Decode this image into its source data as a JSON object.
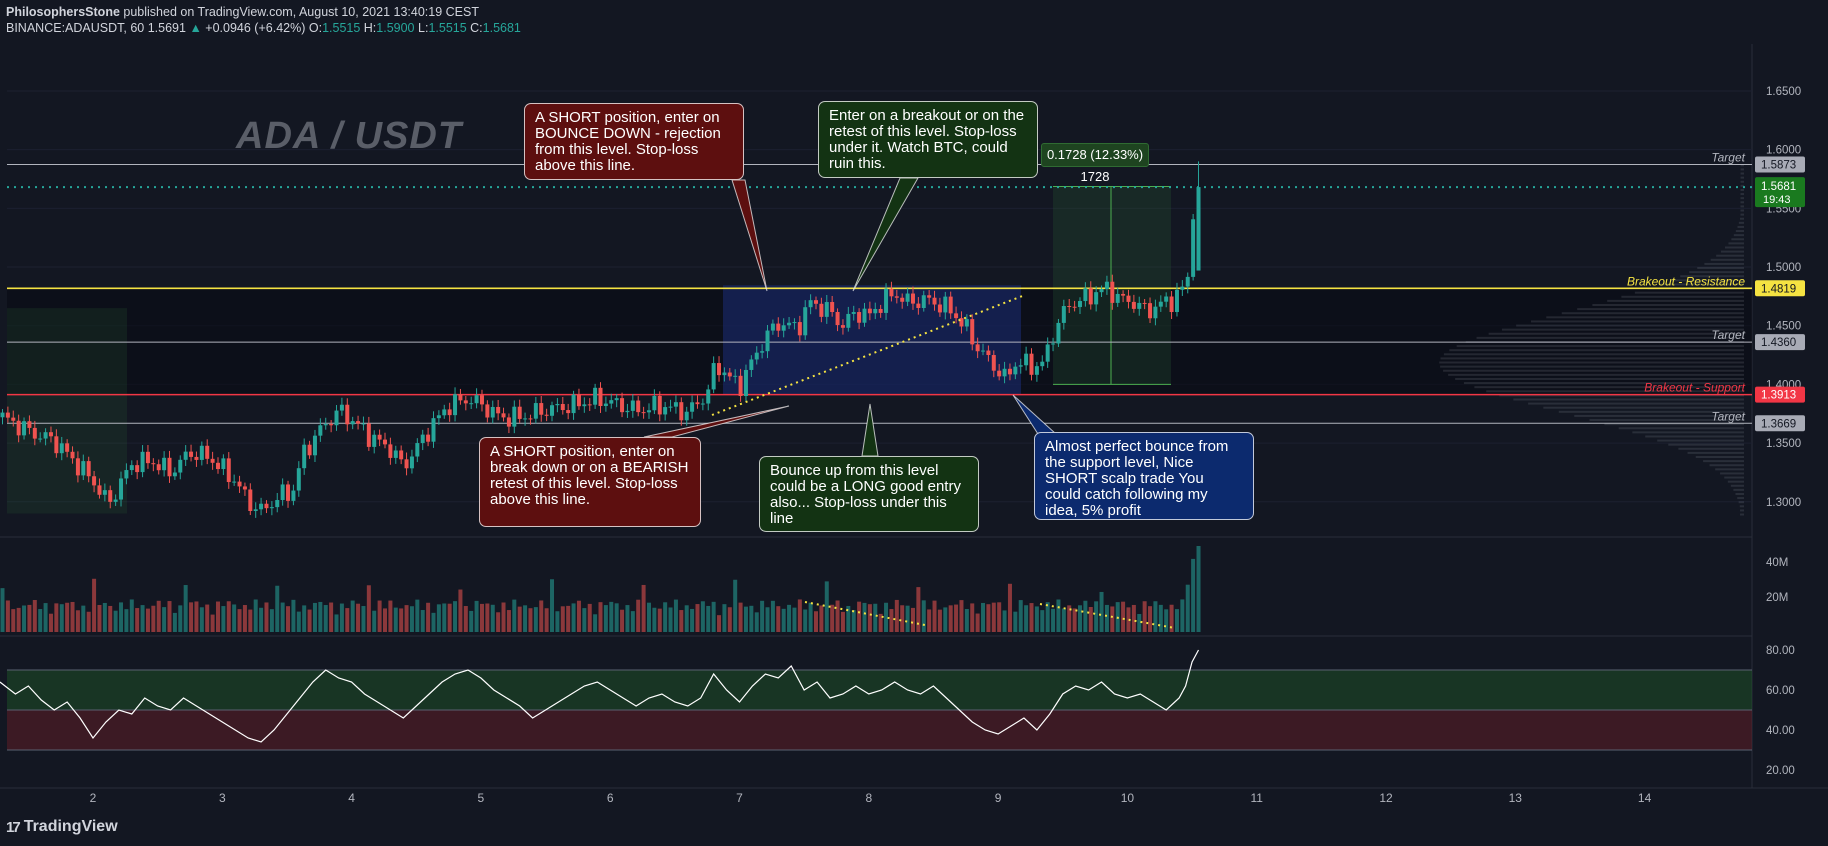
{
  "header": {
    "author": "PhilosophersStone",
    "published": "published on TradingView.com, August 10, 2021 13:40:19 CEST",
    "symbol": "BINANCE:ADAUSDT, 60",
    "last": "1.5691",
    "change": "+0.0946 (+6.42%)",
    "o_label": "O:",
    "o_value": "1.5515",
    "h_label": "H:",
    "h_value": "1.5900",
    "l_label": "L:",
    "l_value": "1.5515",
    "c_label": "C:",
    "c_value": "1.5681"
  },
  "watermark": "ADA / USDT",
  "measure_label": "0.1728 (12.33%) 1728",
  "callouts": {
    "short_top": "A SHORT position, enter on BOUNCE DOWN - rejection from this level. Stop-loss above this line.",
    "breakout": "Enter on a breakout or on the retest of this level. Stop-loss under it. Watch BTC, could ruin this.",
    "short_bottom": "A SHORT position, enter on break down or on a BEARISH retest of this level. Stop-loss above this line.",
    "long": "Bounce up from this level could be a LONG good entry also... Stop-loss under this line",
    "bounce": "Almost perfect bounce from the support level, Nice SHORT scalp trade You could catch following my idea, 5% profit"
  },
  "current_price_tag": {
    "price": "1.5681",
    "countdown": "19:43"
  },
  "colors": {
    "background": "#131722",
    "up": "#26a69a",
    "down": "#ef5350",
    "resistance": "#f5e342",
    "support": "#f23645",
    "target": "#b2b5be",
    "rsi_line": "#ffffff"
  },
  "logo_icon": "tradingview-logo-icon",
  "logo": "TradingView",
  "chart_data": [
    {
      "type": "candlestick",
      "price_axis_ticks": [
        "1.6500",
        "1.6000",
        "1.5500",
        "1.5000",
        "1.4500",
        "1.4000",
        "1.3500",
        "1.3000"
      ],
      "x_ticks": [
        "2",
        "3",
        "4",
        "5",
        "6",
        "7",
        "8",
        "9",
        "10",
        "11",
        "12",
        "13",
        "14"
      ],
      "ylim": [
        1.27,
        1.69
      ],
      "levels": [
        {
          "name": "target",
          "value": 1.5873,
          "tag": "1.5873",
          "label": "Target",
          "color": "#b2b5be"
        },
        {
          "name": "resistance",
          "value": 1.4819,
          "tag": "1.4819",
          "label": "Brakeout - Resistance",
          "color": "#f5e342"
        },
        {
          "name": "target",
          "value": 1.436,
          "tag": "1.4360",
          "label": "Target",
          "color": "#b2b5be"
        },
        {
          "name": "support",
          "value": 1.3913,
          "tag": "1.3913",
          "label": "Brakeout - Support",
          "color": "#f23645"
        },
        {
          "name": "target",
          "value": 1.3669,
          "tag": "1.3669",
          "label": "Target",
          "color": "#b2b5be"
        }
      ],
      "current_price": 1.5681,
      "price_path": [
        [
          1.3,
          1.372
        ],
        [
          1.55,
          1.358
        ],
        [
          1.7,
          1.352
        ],
        [
          1.85,
          1.335
        ],
        [
          2.0,
          1.318
        ],
        [
          2.12,
          1.298
        ],
        [
          2.3,
          1.332
        ],
        [
          2.45,
          1.335
        ],
        [
          2.6,
          1.325
        ],
        [
          2.75,
          1.342
        ],
        [
          2.9,
          1.338
        ],
        [
          3.0,
          1.328
        ],
        [
          3.1,
          1.318
        ],
        [
          3.2,
          1.3
        ],
        [
          3.3,
          1.292
        ],
        [
          3.45,
          1.305
        ],
        [
          3.55,
          1.31
        ],
        [
          3.62,
          1.34
        ],
        [
          3.75,
          1.36
        ],
        [
          3.9,
          1.378
        ],
        [
          4.0,
          1.37
        ],
        [
          4.15,
          1.355
        ],
        [
          4.3,
          1.345
        ],
        [
          4.4,
          1.33
        ],
        [
          4.5,
          1.345
        ],
        [
          4.6,
          1.362
        ],
        [
          4.75,
          1.382
        ],
        [
          4.9,
          1.388
        ],
        [
          5.0,
          1.383
        ],
        [
          5.15,
          1.372
        ],
        [
          5.3,
          1.372
        ],
        [
          5.5,
          1.378
        ],
        [
          5.7,
          1.382
        ],
        [
          5.9,
          1.388
        ],
        [
          6.0,
          1.385
        ],
        [
          6.2,
          1.378
        ],
        [
          6.4,
          1.382
        ],
        [
          6.6,
          1.376
        ],
        [
          6.75,
          1.392
        ],
        [
          6.82,
          1.418
        ],
        [
          6.9,
          1.408
        ],
        [
          7.0,
          1.398
        ],
        [
          7.1,
          1.42
        ],
        [
          7.2,
          1.44
        ],
        [
          7.3,
          1.452
        ],
        [
          7.45,
          1.448
        ],
        [
          7.55,
          1.47
        ],
        [
          7.7,
          1.462
        ],
        [
          7.8,
          1.45
        ],
        [
          7.9,
          1.462
        ],
        [
          8.0,
          1.458
        ],
        [
          8.1,
          1.47
        ],
        [
          8.2,
          1.478
        ],
        [
          8.3,
          1.47
        ],
        [
          8.45,
          1.472
        ],
        [
          8.55,
          1.468
        ],
        [
          8.65,
          1.462
        ],
        [
          8.75,
          1.448
        ],
        [
          8.85,
          1.43
        ],
        [
          8.95,
          1.418
        ],
        [
          9.0,
          1.412
        ],
        [
          9.05,
          1.405
        ],
        [
          9.15,
          1.42
        ],
        [
          9.25,
          1.415
        ],
        [
          9.35,
          1.418
        ],
        [
          9.45,
          1.45
        ],
        [
          9.55,
          1.468
        ],
        [
          9.65,
          1.472
        ],
        [
          9.75,
          1.478
        ],
        [
          9.85,
          1.482
        ],
        [
          9.95,
          1.472
        ],
        [
          10.05,
          1.47
        ],
        [
          10.15,
          1.462
        ],
        [
          10.25,
          1.468
        ],
        [
          10.35,
          1.472
        ],
        [
          10.42,
          1.48
        ],
        [
          10.47,
          1.492
        ],
        [
          10.52,
          1.565
        ],
        [
          10.55,
          1.568
        ]
      ]
    },
    {
      "type": "bar",
      "name": "volume",
      "y_ticks": [
        "40M",
        "20M"
      ]
    },
    {
      "type": "line",
      "name": "rsi",
      "y_ticks": [
        "80.00",
        "60.00",
        "40.00",
        "20.00"
      ],
      "ylim": [
        15,
        85
      ],
      "bands": [
        50,
        70,
        30
      ],
      "values": [
        [
          1.28,
          64
        ],
        [
          1.4,
          58
        ],
        [
          1.5,
          62
        ],
        [
          1.6,
          55
        ],
        [
          1.7,
          50
        ],
        [
          1.8,
          54
        ],
        [
          1.9,
          46
        ],
        [
          2.0,
          36
        ],
        [
          2.1,
          44
        ],
        [
          2.2,
          50
        ],
        [
          2.3,
          48
        ],
        [
          2.4,
          56
        ],
        [
          2.5,
          52
        ],
        [
          2.6,
          50
        ],
        [
          2.7,
          56
        ],
        [
          2.8,
          52
        ],
        [
          2.9,
          48
        ],
        [
          3.0,
          44
        ],
        [
          3.1,
          40
        ],
        [
          3.2,
          36
        ],
        [
          3.3,
          34
        ],
        [
          3.4,
          40
        ],
        [
          3.5,
          48
        ],
        [
          3.6,
          56
        ],
        [
          3.7,
          64
        ],
        [
          3.8,
          70
        ],
        [
          3.9,
          66
        ],
        [
          4.0,
          64
        ],
        [
          4.1,
          58
        ],
        [
          4.2,
          54
        ],
        [
          4.3,
          50
        ],
        [
          4.4,
          46
        ],
        [
          4.5,
          52
        ],
        [
          4.6,
          58
        ],
        [
          4.7,
          64
        ],
        [
          4.8,
          68
        ],
        [
          4.9,
          70
        ],
        [
          5.0,
          66
        ],
        [
          5.1,
          60
        ],
        [
          5.2,
          56
        ],
        [
          5.3,
          52
        ],
        [
          5.4,
          46
        ],
        [
          5.5,
          50
        ],
        [
          5.6,
          54
        ],
        [
          5.7,
          58
        ],
        [
          5.8,
          62
        ],
        [
          5.9,
          64
        ],
        [
          6.0,
          60
        ],
        [
          6.1,
          56
        ],
        [
          6.2,
          52
        ],
        [
          6.3,
          56
        ],
        [
          6.4,
          58
        ],
        [
          6.5,
          54
        ],
        [
          6.6,
          52
        ],
        [
          6.7,
          56
        ],
        [
          6.8,
          68
        ],
        [
          6.9,
          60
        ],
        [
          7.0,
          54
        ],
        [
          7.1,
          62
        ],
        [
          7.2,
          68
        ],
        [
          7.3,
          66
        ],
        [
          7.4,
          72
        ],
        [
          7.5,
          60
        ],
        [
          7.6,
          64
        ],
        [
          7.7,
          56
        ],
        [
          7.8,
          58
        ],
        [
          7.9,
          62
        ],
        [
          8.0,
          58
        ],
        [
          8.1,
          60
        ],
        [
          8.2,
          64
        ],
        [
          8.3,
          60
        ],
        [
          8.4,
          58
        ],
        [
          8.5,
          62
        ],
        [
          8.6,
          56
        ],
        [
          8.7,
          50
        ],
        [
          8.8,
          44
        ],
        [
          8.9,
          40
        ],
        [
          9.0,
          38
        ],
        [
          9.1,
          42
        ],
        [
          9.2,
          46
        ],
        [
          9.3,
          40
        ],
        [
          9.4,
          48
        ],
        [
          9.5,
          58
        ],
        [
          9.6,
          62
        ],
        [
          9.7,
          60
        ],
        [
          9.8,
          64
        ],
        [
          9.9,
          58
        ],
        [
          10.0,
          56
        ],
        [
          10.1,
          58
        ],
        [
          10.2,
          54
        ],
        [
          10.3,
          50
        ],
        [
          10.4,
          56
        ],
        [
          10.45,
          62
        ],
        [
          10.5,
          74
        ],
        [
          10.55,
          80
        ]
      ]
    }
  ]
}
